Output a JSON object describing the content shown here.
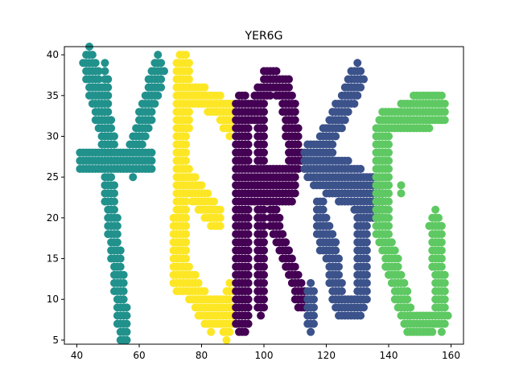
{
  "chart_data": {
    "type": "scatter",
    "title": "YER6G",
    "xlabel": "",
    "ylabel": "",
    "xlim": [
      36,
      164
    ],
    "ylim": [
      4.5,
      41.0
    ],
    "xticks": [
      40,
      60,
      80,
      100,
      120,
      140,
      160
    ],
    "yticks": [
      5,
      10,
      15,
      20,
      25,
      30,
      35,
      40
    ],
    "grid": false,
    "legend": "none",
    "marker_step": 1,
    "series": [
      {
        "color": "#21918c",
        "strokes": [
          {
            "x0": 44,
            "y0": 39,
            "x1": 51,
            "y1": 28,
            "half_width": 2.2
          },
          {
            "x0": 49,
            "y0": 39,
            "x1": 51,
            "y1": 28,
            "half_width": 0.8
          },
          {
            "x0": 66,
            "y0": 38,
            "x1": 58,
            "y1": 27,
            "half_width": 2.0
          },
          {
            "x0": 42,
            "y0": 27,
            "x1": 63,
            "y1": 27,
            "half_width": 1.6
          },
          {
            "x0": 50,
            "y0": 25,
            "x1": 55,
            "y1": 6,
            "half_width": 1.8
          }
        ]
      },
      {
        "color": "#fde725",
        "strokes": [
          {
            "x0": 74,
            "y0": 38,
            "x1": 73,
            "y1": 13,
            "half_width": 2.3
          },
          {
            "x0": 74,
            "y0": 36,
            "x1": 89,
            "y1": 33,
            "half_width": 1.5
          },
          {
            "x0": 86,
            "y0": 33,
            "x1": 89,
            "y1": 31,
            "half_width": 1.2
          },
          {
            "x0": 74,
            "y0": 25,
            "x1": 85,
            "y1": 20,
            "half_width": 1.8
          },
          {
            "x0": 74,
            "y0": 13,
            "x1": 83,
            "y1": 8,
            "half_width": 2.0
          },
          {
            "x0": 83,
            "y0": 9,
            "x1": 90,
            "y1": 8,
            "half_width": 1.8
          },
          {
            "x0": 88,
            "y0": 6,
            "x1": 89,
            "y1": 11,
            "half_width": 1.0
          }
        ]
      },
      {
        "color": "#440154",
        "strokes": [
          {
            "x0": 93,
            "y0": 33,
            "x1": 93,
            "y1": 8,
            "half_width": 2.5
          },
          {
            "x0": 94,
            "y0": 32,
            "x1": 101,
            "y1": 36,
            "half_width": 1.6
          },
          {
            "x0": 101,
            "y0": 37,
            "x1": 107,
            "y1": 36,
            "half_width": 1.6
          },
          {
            "x0": 108,
            "y0": 34,
            "x1": 110,
            "y1": 27,
            "half_width": 2.2
          },
          {
            "x0": 95,
            "y0": 24,
            "x1": 108,
            "y1": 24,
            "half_width": 2.3
          },
          {
            "x0": 103,
            "y0": 20,
            "x1": 112,
            "y1": 10,
            "half_width": 1.5
          },
          {
            "x0": 99,
            "y0": 33,
            "x1": 99,
            "y1": 9,
            "half_width": 1.2
          }
        ]
      },
      {
        "color": "#3b528b",
        "strokes": [
          {
            "x0": 130,
            "y0": 37,
            "x1": 118,
            "y1": 28,
            "half_width": 2.0
          },
          {
            "x0": 115,
            "y0": 27,
            "x1": 136,
            "y1": 22,
            "half_width": 2.8
          },
          {
            "x0": 118,
            "y0": 21,
            "x1": 119,
            "y1": 17,
            "half_width": 1.8
          },
          {
            "x0": 121,
            "y0": 17,
            "x1": 124,
            "y1": 10,
            "half_width": 2.0
          },
          {
            "x0": 132,
            "y0": 21,
            "x1": 131,
            "y1": 10,
            "half_width": 2.0
          },
          {
            "x0": 124,
            "y0": 9,
            "x1": 130,
            "y1": 9,
            "half_width": 1.2
          },
          {
            "x0": 115,
            "y0": 11,
            "x1": 115,
            "y1": 7,
            "half_width": 1.0
          }
        ]
      },
      {
        "color": "#5ec962",
        "strokes": [
          {
            "x0": 138,
            "y0": 31,
            "x1": 138,
            "y1": 18,
            "half_width": 2.2
          },
          {
            "x0": 140,
            "y0": 32,
            "x1": 157,
            "y1": 33,
            "half_width": 1.8
          },
          {
            "x0": 148,
            "y0": 35,
            "x1": 157,
            "y1": 35,
            "half_width": 0.8
          },
          {
            "x0": 139,
            "y0": 17,
            "x1": 146,
            "y1": 8,
            "half_width": 2.0
          },
          {
            "x0": 146,
            "y0": 7,
            "x1": 154,
            "y1": 7,
            "half_width": 1.3
          },
          {
            "x0": 155,
            "y0": 19,
            "x1": 157,
            "y1": 8,
            "half_width": 2.0
          },
          {
            "x0": 144,
            "y0": 24,
            "x1": 144,
            "y1": 23,
            "half_width": 0.6
          }
        ]
      }
    ]
  }
}
